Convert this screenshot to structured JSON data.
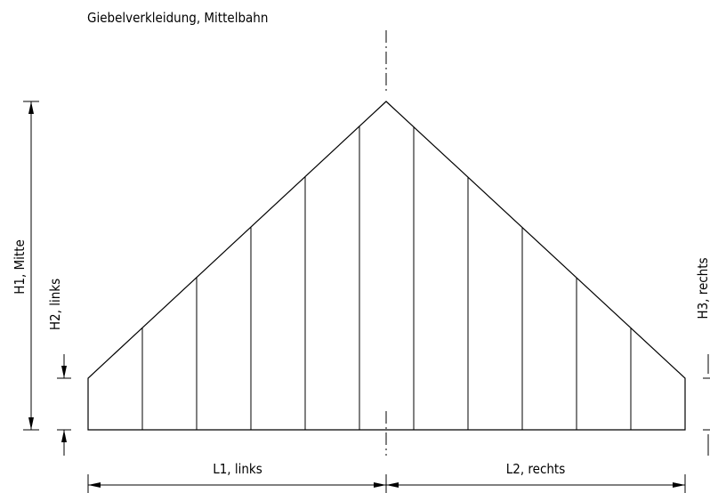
{
  "title": "Giebelverkleidung, Mittelbahn",
  "dimensions": {
    "h1": "H1, Mitte",
    "h2": "H2, links",
    "h3": "H3, rechts",
    "l1": "L1, links",
    "l2": "L2, rechts"
  }
}
